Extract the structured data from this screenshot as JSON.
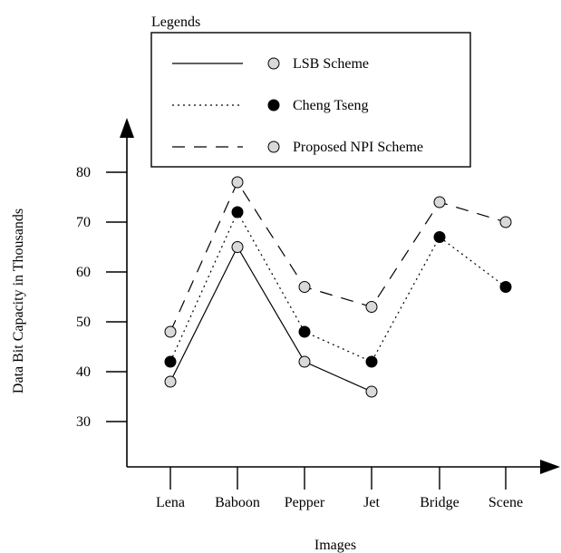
{
  "chart_data": {
    "type": "line",
    "categories": [
      "Lena",
      "Baboon",
      "Pepper",
      "Jet",
      "Bridge",
      "Scene"
    ],
    "series": [
      {
        "name": "LSB Scheme",
        "values": [
          38,
          65,
          42,
          36,
          null,
          null
        ],
        "line_style": "solid",
        "marker_fill": "#d9d9d9"
      },
      {
        "name": "Cheng Tseng",
        "values": [
          42,
          72,
          48,
          42,
          67,
          57
        ],
        "line_style": "dotted",
        "marker_fill": "#000000"
      },
      {
        "name": "Proposed NPI Scheme",
        "values": [
          48,
          78,
          57,
          53,
          74,
          70
        ],
        "line_style": "dashed",
        "marker_fill": "#d9d9d9"
      }
    ],
    "xlabel": "Images",
    "ylabel": "Data Bit Capacity in Thousands",
    "yticks": [
      30,
      40,
      50,
      60,
      70,
      80
    ],
    "ylim": [
      20,
      90
    ],
    "grid": false,
    "legend": {
      "title": "Legends",
      "placement": "top-center"
    }
  }
}
